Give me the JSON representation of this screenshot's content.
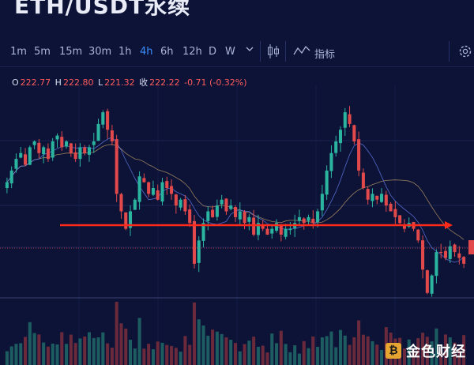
{
  "header": {
    "title": "ETH/USDT永续"
  },
  "toolbar": {
    "timeframes": [
      "1m",
      "5m",
      "15m",
      "30m",
      "1h",
      "4h",
      "6h",
      "12h",
      "D",
      "W"
    ],
    "active_timeframe": "4h",
    "more_icon": "chevron-down-icon",
    "chart_type_icon": "candlestick-icon",
    "indicator_label": "指标",
    "indicator_icon": "indicator-wave-icon",
    "settings_icon": "gear-icon"
  },
  "ohlc": {
    "open_key": "O",
    "open": "222.77",
    "high_key": "H",
    "high": "222.80",
    "low_key": "L",
    "low": "221.32",
    "close_key": "收",
    "close": "222.22",
    "change": "-0.71 (-0.32%)"
  },
  "colors": {
    "background": "#0c1337",
    "up": "#2bb5a0",
    "down": "#e2494b",
    "annotation": "#ff2a1a",
    "active": "#3c8dff"
  },
  "logo": {
    "text": "金色财经",
    "mark": "₿"
  },
  "chart_data": {
    "type": "candlestick",
    "timeframe": "4h",
    "price_range": [
      214,
      246
    ],
    "series_close_approx": [
      231,
      233,
      235,
      236,
      234,
      237,
      238,
      236,
      237,
      235,
      238,
      239,
      237,
      238,
      236,
      235,
      237,
      236,
      237,
      238,
      241,
      243,
      240,
      238,
      229,
      226,
      223,
      226,
      228,
      232,
      231,
      229,
      230,
      228,
      231,
      230,
      229,
      227,
      228,
      226,
      224,
      217,
      221,
      224,
      226,
      225,
      227,
      228,
      226,
      227,
      225,
      226,
      224,
      225,
      222,
      224,
      223,
      222,
      223,
      224,
      222,
      223,
      223,
      224,
      225,
      224,
      225,
      224,
      226,
      229,
      233,
      236,
      238,
      240,
      243,
      241,
      238,
      233,
      230,
      228,
      229,
      228,
      229,
      227,
      226,
      225,
      224,
      223,
      224,
      223,
      221,
      216,
      212,
      215,
      219,
      219,
      218,
      220,
      219,
      218,
      217
    ],
    "annotation": "horizontal support line with arrow at ~223"
  }
}
